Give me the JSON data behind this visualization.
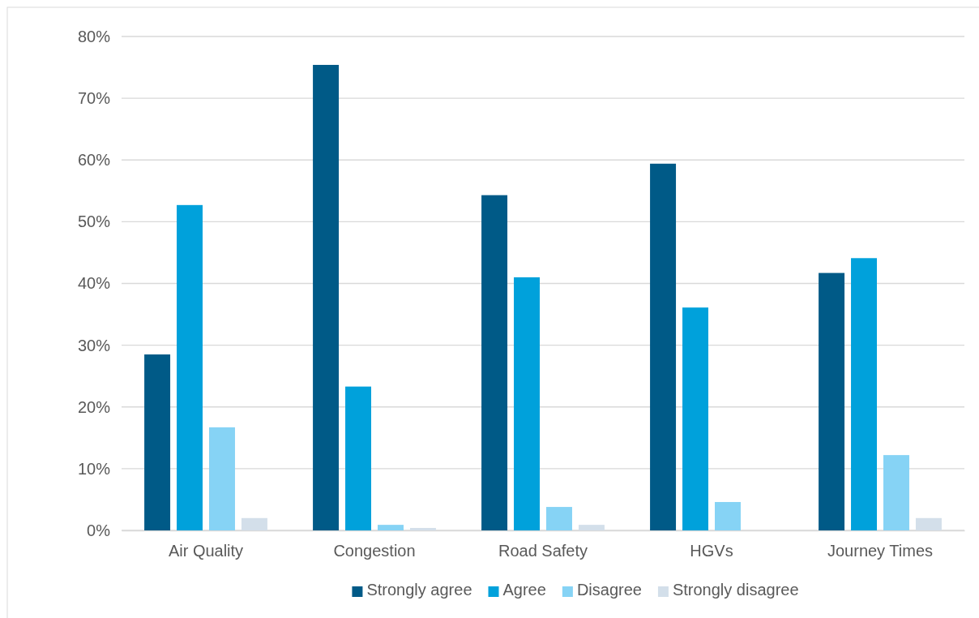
{
  "chart_data": {
    "type": "bar",
    "categories": [
      "Air Quality",
      "Congestion",
      "Road Safety",
      "HGVs",
      "Journey Times"
    ],
    "series": [
      {
        "name": "Strongly agree",
        "color": "#005a87",
        "values": [
          28.5,
          75.4,
          54.3,
          59.4,
          41.7
        ]
      },
      {
        "name": "Agree",
        "color": "#00a1db",
        "values": [
          52.7,
          23.3,
          41.0,
          36.1,
          44.1
        ]
      },
      {
        "name": "Disagree",
        "color": "#86d3f5",
        "values": [
          16.7,
          0.9,
          3.8,
          4.6,
          12.2
        ]
      },
      {
        "name": "Strongly disagree",
        "color": "#d3dfea",
        "values": [
          2.0,
          0.4,
          0.9,
          0,
          2.0
        ]
      }
    ],
    "ylim": [
      0,
      80
    ],
    "yticks": [
      {
        "value": 0,
        "label": "0%"
      },
      {
        "value": 10,
        "label": "10%"
      },
      {
        "value": 20,
        "label": "20%"
      },
      {
        "value": 30,
        "label": "30%"
      },
      {
        "value": 40,
        "label": "40%"
      },
      {
        "value": 50,
        "label": "50%"
      },
      {
        "value": 60,
        "label": "60%"
      },
      {
        "value": 70,
        "label": "70%"
      },
      {
        "value": 80,
        "label": "80%"
      }
    ],
    "grid": "y",
    "legend": "bottom"
  }
}
